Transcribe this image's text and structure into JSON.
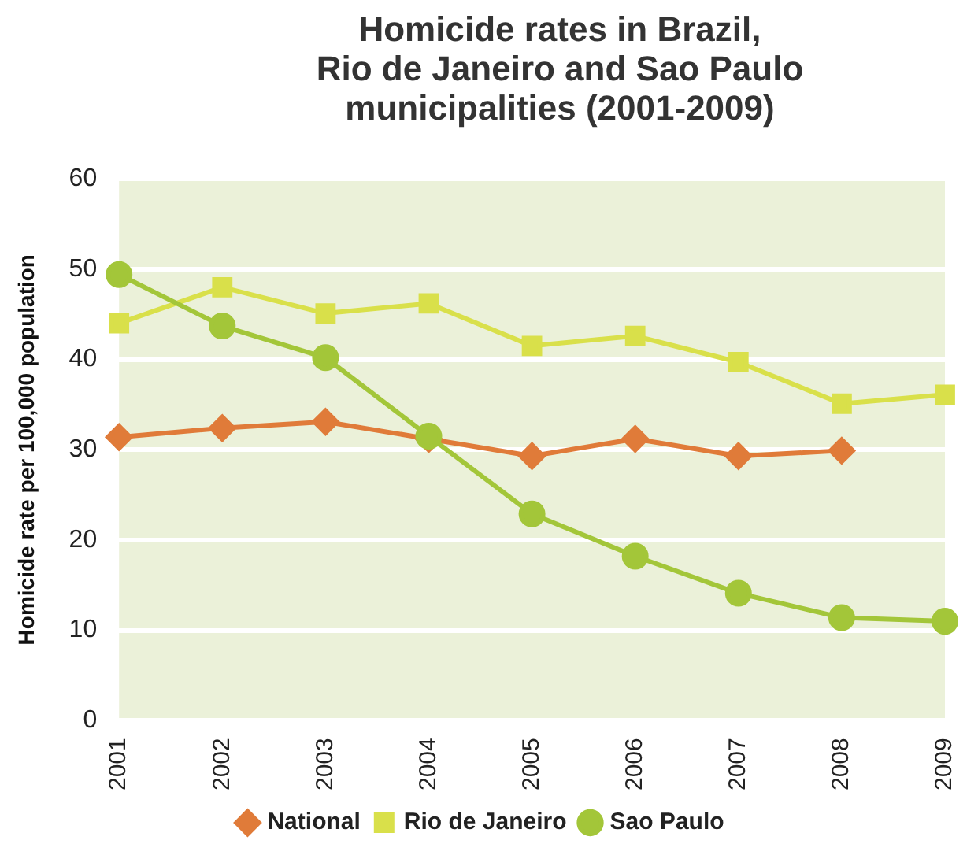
{
  "chart_data": {
    "type": "line",
    "title": "Homicide rates in Brazil,\nRio de Janeiro and Sao Paulo\nmunicipalities (2001-2009)",
    "ylabel": "Homicide rate per 100,000 population",
    "categories": [
      "2001",
      "2002",
      "2003",
      "2004",
      "2005",
      "2006",
      "2007",
      "2008",
      "2009"
    ],
    "series": [
      {
        "name": "National",
        "color": "#e07b39",
        "marker": "diamond",
        "values": [
          31.4,
          32.4,
          33.1,
          31.2,
          29.3,
          31.2,
          29.3,
          29.9,
          null
        ]
      },
      {
        "name": "Rio de Janeiro",
        "color": "#d9e04a",
        "marker": "square",
        "values": [
          44.0,
          48.0,
          45.1,
          46.2,
          41.5,
          42.6,
          39.7,
          35.1,
          36.1
        ]
      },
      {
        "name": "Sao Paulo",
        "color": "#a3c639",
        "marker": "circle",
        "values": [
          49.4,
          43.7,
          40.2,
          31.5,
          22.9,
          18.2,
          14.1,
          11.4,
          11.0
        ]
      }
    ],
    "ylim": [
      0,
      60
    ],
    "yticks": [
      0,
      10,
      20,
      30,
      40,
      50,
      60
    ],
    "grid": "y",
    "legend": "bottom"
  }
}
